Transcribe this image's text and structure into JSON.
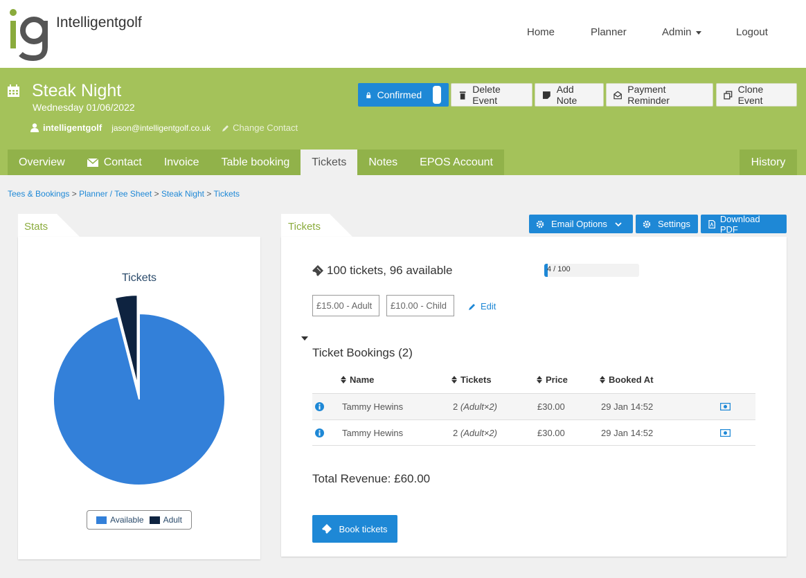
{
  "app": {
    "brand": "Intelligentgolf",
    "brand_color": "#8aab3c",
    "accent": "#1e88d6",
    "header_green": "#a4c25a"
  },
  "nav": {
    "home": "Home",
    "planner": "Planner",
    "admin": "Admin",
    "logout": "Logout"
  },
  "event": {
    "title": "Steak Night",
    "date": "Wednesday 01/06/2022",
    "contact_name": "intelligentgolf",
    "contact_email": "jason@intelligentgolf.co.uk",
    "change_contact": "Change Contact"
  },
  "actions": {
    "confirmed": "Confirmed",
    "delete": "Delete Event",
    "add_note": "Add Note",
    "payment_reminder": "Payment Reminder",
    "clone": "Clone Event"
  },
  "tabs": {
    "overview": "Overview",
    "contact": "Contact",
    "invoice": "Invoice",
    "table_booking": "Table booking",
    "tickets": "Tickets",
    "notes": "Notes",
    "epos": "EPOS Account",
    "history": "History"
  },
  "breadcrumb": [
    "Tees & Bookings",
    "Planner / Tee Sheet",
    "Steak Night",
    "Tickets"
  ],
  "stats": {
    "tab_label": "Stats",
    "chart_data": {
      "type": "pie",
      "title": "Tickets",
      "labels": [
        "Available",
        "Adult"
      ],
      "values": [
        96,
        4
      ],
      "colors": [
        "#3380d9",
        "#0e2340"
      ]
    }
  },
  "tickets": {
    "tab_label": "Tickets",
    "email_options": "Email Options",
    "settings": "Settings",
    "download_pdf": "Download PDF",
    "summary": "100 tickets, 96 available",
    "progress_text": "4 / 100",
    "progress_fraction": 0.04,
    "prices": [
      "£15.00 - Adult",
      "£10.00 - Child"
    ],
    "edit": "Edit",
    "bookings_title": "Ticket Bookings (2)",
    "columns": [
      "Name",
      "Tickets",
      "Price",
      "Booked At"
    ],
    "rows": [
      {
        "name": "Tammy Hewins",
        "tickets": "2",
        "tickets_detail": "(Adult×2)",
        "price": "£30.00",
        "booked_at": "29 Jan 14:52"
      },
      {
        "name": "Tammy Hewins",
        "tickets": "2",
        "tickets_detail": "(Adult×2)",
        "price": "£30.00",
        "booked_at": "29 Jan 14:52"
      }
    ],
    "total_revenue": "Total Revenue: £60.00",
    "book_button": "Book tickets"
  }
}
